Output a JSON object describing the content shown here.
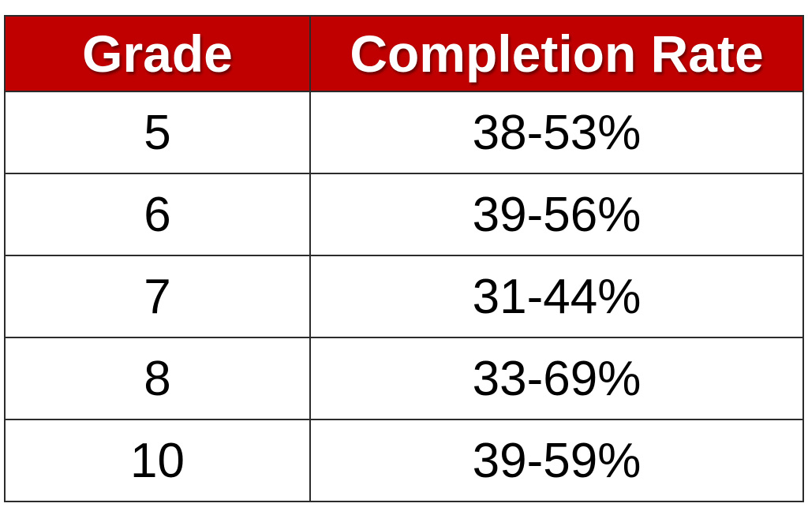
{
  "chart_data": {
    "type": "table",
    "columns": [
      "Grade",
      "Completion Rate"
    ],
    "rows": [
      [
        "5",
        "38-53%"
      ],
      [
        "6",
        "39-56%"
      ],
      [
        "7",
        "31-44%"
      ],
      [
        "8",
        "33-69%"
      ],
      [
        "10",
        "39-59%"
      ]
    ]
  },
  "colors": {
    "header_background": "#c00000",
    "header_text": "#ffffff",
    "body_text": "#000000",
    "border": "#2b2b2b"
  }
}
